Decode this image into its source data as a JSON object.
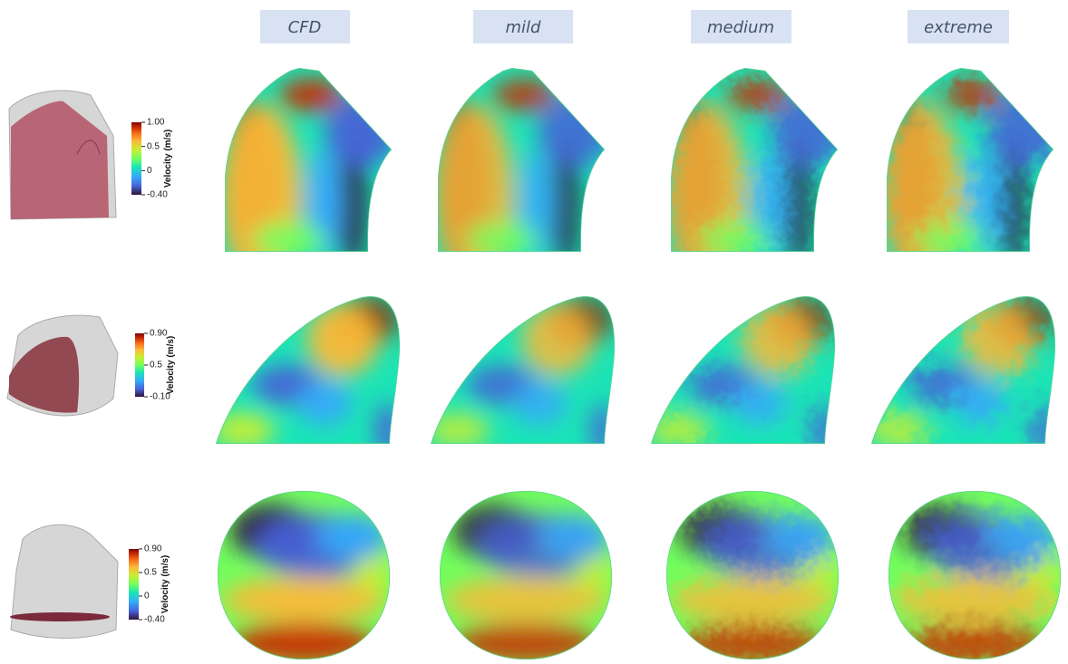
{
  "headers": [
    "CFD",
    "mild",
    "medium",
    "extreme"
  ],
  "rows": [
    {
      "ticks": [
        "1.00",
        "0.5",
        "0",
        "-0.40"
      ],
      "label": "Velocity (m/s)"
    },
    {
      "ticks": [
        "0.90",
        "0.5",
        "-0.10"
      ],
      "label": "Velocity (m/s)"
    },
    {
      "ticks": [
        "0.90",
        "0.5",
        "0",
        "-0.40"
      ],
      "label": "Velocity (m/s)"
    }
  ]
}
